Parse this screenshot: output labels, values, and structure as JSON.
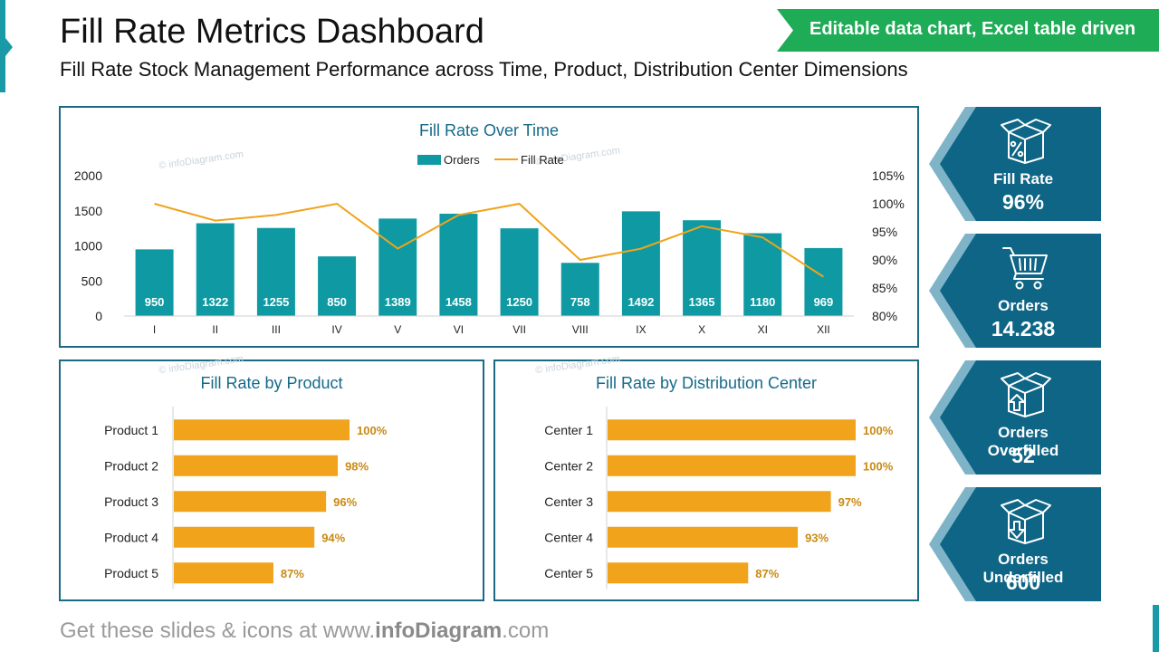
{
  "header": {
    "title": "Fill Rate Metrics Dashboard",
    "subtitle": "Fill Rate Stock Management Performance across Time, Product, Distribution Center Dimensions",
    "banner": "Editable data chart, Excel table driven"
  },
  "footer": {
    "prefix": "Get these slides & icons at www.",
    "brand": "infoDiagram",
    "suffix": ".com"
  },
  "watermark": "© infoDiagram.com",
  "colors": {
    "teal": "#0f9aa3",
    "orange": "#f0a31b",
    "navy": "#0e6585",
    "border": "#1b6a84",
    "green": "#1fac56"
  },
  "kpis": [
    {
      "label": "Fill Rate",
      "value": "96%",
      "icon": "percent-box-icon"
    },
    {
      "label": "Orders",
      "value": "14.238",
      "icon": "shopping-cart-icon"
    },
    {
      "label": "Orders Overfilled",
      "value": "52",
      "icon": "box-arrow-up-icon"
    },
    {
      "label": "Orders Underfilled",
      "value": "600",
      "icon": "box-arrow-down-icon"
    }
  ],
  "chart_data": [
    {
      "type": "bar+line",
      "title": "Fill Rate Over Time",
      "legend": [
        "Orders",
        "Fill Rate"
      ],
      "legend_position": "top",
      "categories": [
        "I",
        "II",
        "III",
        "IV",
        "V",
        "VI",
        "VII",
        "VIII",
        "IX",
        "X",
        "XI",
        "XII"
      ],
      "series": [
        {
          "name": "Orders",
          "type": "bar",
          "axis": "left",
          "values": [
            950,
            1322,
            1255,
            850,
            1389,
            1458,
            1250,
            758,
            1492,
            1365,
            1180,
            969
          ]
        },
        {
          "name": "Fill Rate",
          "type": "line",
          "axis": "right",
          "values": [
            100,
            97,
            98,
            100,
            92,
            98,
            100,
            90,
            92,
            96,
            94,
            87
          ]
        }
      ],
      "ylim": [
        0,
        2000
      ],
      "yticks": [
        "0",
        "500",
        "1000",
        "1500",
        "2000"
      ],
      "y2lim": [
        80,
        105
      ],
      "y2ticks": [
        "80%",
        "85%",
        "90%",
        "95%",
        "100%",
        "105%"
      ]
    },
    {
      "type": "bar",
      "orientation": "horizontal",
      "title": "Fill Rate by Product",
      "categories": [
        "Product 1",
        "Product 2",
        "Product 3",
        "Product 4",
        "Product 5"
      ],
      "values": [
        100,
        98,
        96,
        94,
        87
      ],
      "labels": [
        "100%",
        "98%",
        "96%",
        "94%",
        "87%"
      ],
      "xlim": [
        70,
        100
      ]
    },
    {
      "type": "bar",
      "orientation": "horizontal",
      "title": "Fill Rate by Distribution Center",
      "categories": [
        "Center 1",
        "Center 2",
        "Center 3",
        "Center 4",
        "Center 5"
      ],
      "values": [
        100,
        100,
        97,
        93,
        87
      ],
      "labels": [
        "100%",
        "100%",
        "97%",
        "93%",
        "87%"
      ],
      "xlim": [
        70,
        100
      ]
    }
  ]
}
